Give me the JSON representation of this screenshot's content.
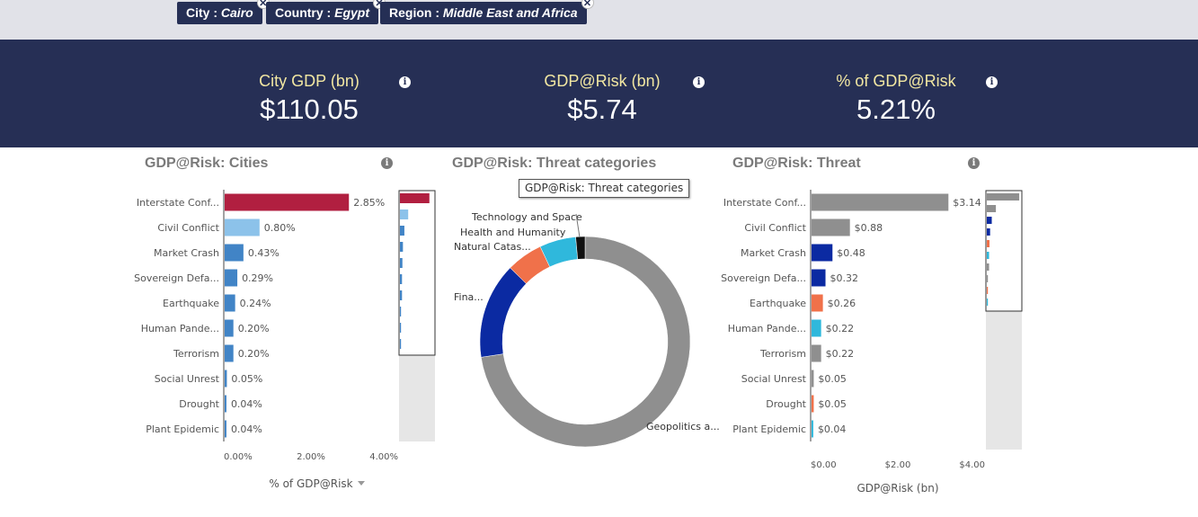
{
  "filters": [
    {
      "key": "City",
      "value": "Cairo"
    },
    {
      "key": "Country",
      "value": "Egypt"
    },
    {
      "key": "Region",
      "value": "Middle East and Africa"
    }
  ],
  "kpis": [
    {
      "label": "City GDP (bn)",
      "value": "$110.05"
    },
    {
      "label": "GDP@Risk (bn)",
      "value": "$5.74"
    },
    {
      "label": "% of GDP@Risk",
      "value": "5.21%"
    }
  ],
  "panels": {
    "cities_title": "GDP@Risk: Cities",
    "threat_categories_title": "GDP@Risk: Threat categories",
    "threat_title": "GDP@Risk: Threat",
    "tooltip": "GDP@Risk: Threat categories"
  },
  "colors": {
    "header": "#262f55",
    "kpi_label": "#f2e7a2",
    "accent_red": "#b11f40",
    "light_blue": "#8cc2ea",
    "mid_blue": "#4184c6",
    "navy": "#0b2aa2",
    "orange": "#f0714a",
    "cyan": "#2fb8dc",
    "grey": "#8f8f8f"
  },
  "chart_data": [
    {
      "type": "bar",
      "orientation": "horizontal",
      "title": "GDP@Risk: Cities",
      "categories": [
        "Interstate Conf...",
        "Civil Conflict",
        "Market Crash",
        "Sovereign Defa...",
        "Earthquake",
        "Human Pande...",
        "Terrorism",
        "Social Unrest",
        "Drought",
        "Plant Epidemic"
      ],
      "values": [
        2.85,
        0.8,
        0.43,
        0.29,
        0.24,
        0.2,
        0.2,
        0.05,
        0.04,
        0.04
      ],
      "value_labels": [
        "2.85%",
        "0.80%",
        "0.43%",
        "0.29%",
        "0.24%",
        "0.20%",
        "0.20%",
        "0.05%",
        "0.04%",
        "0.04%"
      ],
      "bar_colors": [
        "#b11f40",
        "#8cc2ea",
        "#4184c6",
        "#4184c6",
        "#4184c6",
        "#4184c6",
        "#4184c6",
        "#4184c6",
        "#4184c6",
        "#4184c6"
      ],
      "xlim": [
        0,
        4
      ],
      "xticks": [
        0,
        2,
        4
      ],
      "xtick_labels": [
        "0.00%",
        "2.00%",
        "4.00%"
      ],
      "xlabel": "% of GDP@Risk",
      "grid": false
    },
    {
      "type": "pie",
      "donut": true,
      "title": "GDP@Risk: Threat categories",
      "slices": [
        {
          "label": "Geopolitics a...",
          "value": 71.4,
          "color": "#8f8f8f"
        },
        {
          "label": "Fina...",
          "value": 14.5,
          "color": "#0b2aa2"
        },
        {
          "label": "Natural Catas...",
          "value": 5.5,
          "color": "#f0714a"
        },
        {
          "label": "Health and Humanity",
          "value": 5.5,
          "color": "#2fb8dc"
        },
        {
          "label": "Technology and Space",
          "value": 1.4,
          "color": "#111111"
        }
      ]
    },
    {
      "type": "bar",
      "orientation": "horizontal",
      "title": "GDP@Risk: Threat",
      "categories": [
        "Interstate Conf...",
        "Civil Conflict",
        "Market Crash",
        "Sovereign Defa...",
        "Earthquake",
        "Human Pande...",
        "Terrorism",
        "Social Unrest",
        "Drought",
        "Plant Epidemic"
      ],
      "values": [
        3.14,
        0.88,
        0.48,
        0.32,
        0.26,
        0.22,
        0.22,
        0.05,
        0.05,
        0.04
      ],
      "value_labels": [
        "$3.14",
        "$0.88",
        "$0.48",
        "$0.32",
        "$0.26",
        "$0.22",
        "$0.22",
        "$0.05",
        "$0.05",
        "$0.04"
      ],
      "bar_colors": [
        "#8f8f8f",
        "#8f8f8f",
        "#0b2aa2",
        "#0b2aa2",
        "#f0714a",
        "#2fb8dc",
        "#8f8f8f",
        "#8f8f8f",
        "#f0714a",
        "#2fb8dc"
      ],
      "xlim": [
        0,
        4
      ],
      "xticks": [
        0,
        2,
        4
      ],
      "xtick_labels": [
        "$0.00",
        "$2.00",
        "$4.00"
      ],
      "xlabel": "GDP@Risk (bn)",
      "grid": false
    }
  ]
}
